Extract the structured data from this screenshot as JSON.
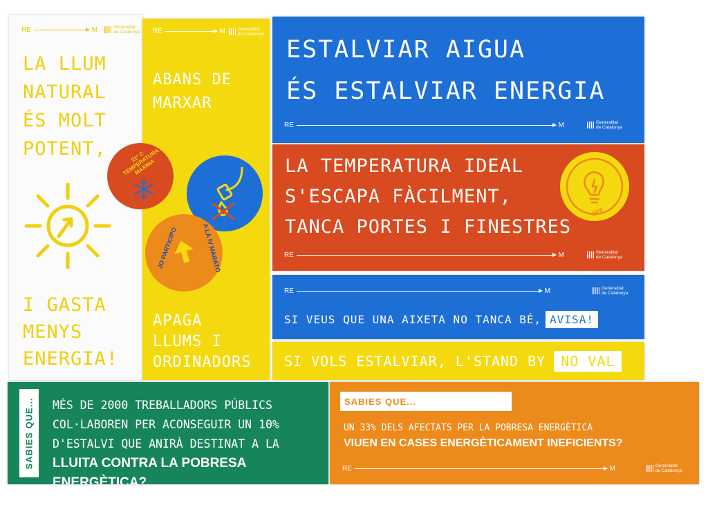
{
  "common": {
    "re": "RE",
    "m": "M",
    "gen_line1": "Generalitat",
    "gen_line2": "de Catalunya"
  },
  "light_panel": {
    "top_text": [
      "LA LLUM",
      "NATURAL",
      "ÉS MOLT",
      "POTENT,"
    ],
    "bottom_text": [
      "I GASTA",
      "MENYS",
      "ENERGIA!"
    ],
    "icon": "sun-icon"
  },
  "leave_panel": {
    "top_text": [
      "ABANS DE",
      "MARXAR"
    ],
    "bottom_text": [
      "APAGA",
      "LLUMS I",
      "ORDINADORS"
    ]
  },
  "stickers": {
    "temperature": [
      "21º C",
      "TEMPERATURA",
      "MÀXIMA"
    ],
    "participate_left": "JO PARTICIPO",
    "participate_right": "A LA IV MARATÓ",
    "off": "OFF"
  },
  "water_panel": {
    "lines": [
      "ESTALVIAR AIGUA",
      "ÉS ESTALVIAR ENERGIA"
    ]
  },
  "temp_panel": {
    "lines": [
      "LA TEMPERATURA IDEAL",
      "S'ESCAPA FÀCILMENT,",
      "TANCA PORTES I FINESTRES"
    ]
  },
  "tap_panel": {
    "text": "SI VEUS QUE UNA AIXETA NO TANCA BÉ,",
    "highlight": "AVISA!"
  },
  "standby_panel": {
    "text": "SI VOLS ESTALVIAR, L'STAND BY",
    "highlight": "NO VAL"
  },
  "workers_panel": {
    "side_label": "SABIES QUE...",
    "lines": [
      "MÉS DE 2000 TREBALLADORS PÚBLICS",
      "COL·LABOREN PER ACONSEGUIR UN 10%",
      "D'ESTALVI QUE ANIRÀ DESTINAT A LA"
    ],
    "bold_line": "LLUITA CONTRA LA POBRESA ENERGÈTICA?"
  },
  "poverty_panel": {
    "label": "SABIES QUE...",
    "line1": "UN 33% DELS AFECTATS PER LA POBRESA ENERGÈTICA",
    "bold_line": "VIUEN EN CASES ENERGÈTICAMENT INEFICIENTS?"
  },
  "colors": {
    "yellow": "#f5d90f",
    "blue": "#1d6fd6",
    "orange_red": "#d84a1f",
    "green": "#17855a",
    "orange": "#ed8a1c",
    "white": "#ffffff"
  }
}
